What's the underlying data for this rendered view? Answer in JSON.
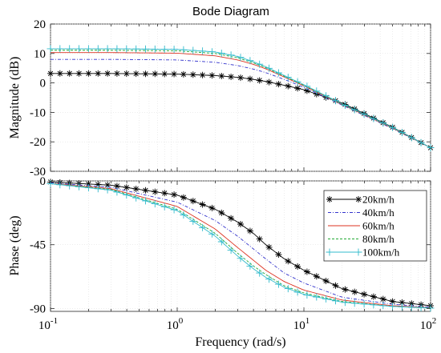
{
  "chart_data": {
    "type": "line",
    "title": "Bode Diagram",
    "xlabel": "Frequency  (rad/s)",
    "x_scale": "log",
    "xlim": [
      0.1,
      100
    ],
    "x_ticks": [
      0.1,
      1,
      10,
      100
    ],
    "x_tick_labels": [
      {
        "base": "10",
        "exp": "-1"
      },
      {
        "base": "10",
        "exp": "0"
      },
      {
        "base": "10",
        "exp": "1"
      },
      {
        "base": "10",
        "exp": "2"
      }
    ],
    "legend": {
      "placement": "right",
      "panel": "phase"
    },
    "panels": [
      {
        "id": "magnitude",
        "ylabel": "Magnitude (dB)",
        "ylim": [
          -30,
          20
        ],
        "y_ticks": [
          -30,
          -20,
          -10,
          0,
          10,
          20
        ],
        "y_tick_labels": [
          "-30",
          "-20",
          "-10",
          "0",
          "10",
          "20"
        ]
      },
      {
        "id": "phase",
        "ylabel": "Phase (deg)",
        "ylim": [
          -92,
          0
        ],
        "y_ticks": [
          -90,
          -45,
          0
        ],
        "y_tick_labels": [
          "-90",
          "-45",
          "0"
        ]
      }
    ],
    "series": [
      {
        "name": "20km/h",
        "color": "#000000",
        "marker": "star",
        "dash": "",
        "magnitude": {
          "x": [
            0.1,
            0.3,
            1,
            2,
            3,
            4,
            5,
            7,
            10,
            20,
            50,
            100
          ],
          "y": [
            3.2,
            3.2,
            3.0,
            2.5,
            1.9,
            1.2,
            0.5,
            -0.8,
            -2.3,
            -6.8,
            -15.0,
            -22.0
          ]
        },
        "phase": {
          "x": [
            0.1,
            0.3,
            1,
            2,
            3,
            4,
            5,
            7,
            10,
            20,
            50,
            100
          ],
          "y": [
            -0.8,
            -3,
            -10,
            -20,
            -29,
            -37,
            -45,
            -55,
            -63,
            -76,
            -85,
            -88
          ]
        }
      },
      {
        "name": "40km/h",
        "color": "#3333cc",
        "marker": "none",
        "dash": "4 2 1 2",
        "magnitude": {
          "x": [
            0.1,
            0.3,
            1,
            2,
            3,
            4,
            5,
            7,
            10,
            20,
            50,
            100
          ],
          "y": [
            8.0,
            8.0,
            7.8,
            7.0,
            5.9,
            4.7,
            3.5,
            1.2,
            -1.5,
            -7.5,
            -15.5,
            -22.0
          ]
        },
        "phase": {
          "x": [
            0.1,
            0.3,
            1,
            2,
            3,
            4,
            5,
            7,
            10,
            20,
            50,
            100
          ],
          "y": [
            -1.4,
            -4.5,
            -15,
            -28,
            -39,
            -48,
            -55,
            -65,
            -72,
            -82,
            -87,
            -89
          ]
        }
      },
      {
        "name": "60km/h",
        "color": "#dd3322",
        "marker": "none",
        "dash": "",
        "magnitude": {
          "x": [
            0.1,
            0.3,
            1,
            2,
            3,
            4,
            5,
            7,
            10,
            20,
            50,
            100
          ],
          "y": [
            10.3,
            10.3,
            10.1,
            9.2,
            7.8,
            6.3,
            4.8,
            2.0,
            -1.0,
            -7.3,
            -15.3,
            -22.0
          ]
        },
        "phase": {
          "x": [
            0.1,
            0.3,
            1,
            2,
            3,
            4,
            5,
            7,
            10,
            20,
            50,
            100
          ],
          "y": [
            -1.8,
            -5.5,
            -18,
            -34,
            -47,
            -56,
            -63,
            -71,
            -77,
            -84,
            -88,
            -89.5
          ]
        }
      },
      {
        "name": "80km/h",
        "color": "#22aa33",
        "marker": "none",
        "dash": "3 2",
        "magnitude": {
          "x": [
            0.1,
            0.3,
            1,
            2,
            3,
            4,
            5,
            7,
            10,
            20,
            50,
            100
          ],
          "y": [
            11.1,
            11.1,
            10.9,
            10.0,
            8.5,
            6.8,
            5.2,
            2.3,
            -0.8,
            -7.2,
            -15.2,
            -22.0
          ]
        },
        "phase": {
          "x": [
            0.1,
            0.3,
            1,
            2,
            3,
            4,
            5,
            7,
            10,
            20,
            50,
            100
          ],
          "y": [
            -1.9,
            -6,
            -20,
            -37,
            -51,
            -60,
            -66,
            -74,
            -79,
            -85,
            -88.5,
            -89.5
          ]
        }
      },
      {
        "name": "100km/h",
        "color": "#33bbcc",
        "marker": "plus",
        "dash": "",
        "magnitude": {
          "x": [
            0.1,
            0.3,
            1,
            2,
            3,
            4,
            5,
            7,
            10,
            20,
            50,
            100
          ],
          "y": [
            11.6,
            11.6,
            11.4,
            10.5,
            9.0,
            7.2,
            5.5,
            2.5,
            -0.6,
            -7.1,
            -15.1,
            -22.0
          ]
        },
        "phase": {
          "x": [
            0.1,
            0.3,
            1,
            2,
            3,
            4,
            5,
            7,
            10,
            20,
            50,
            100
          ],
          "y": [
            -2,
            -6.5,
            -21,
            -39,
            -53,
            -62,
            -68,
            -75,
            -80,
            -85.5,
            -88.5,
            -89.7
          ]
        }
      }
    ]
  }
}
